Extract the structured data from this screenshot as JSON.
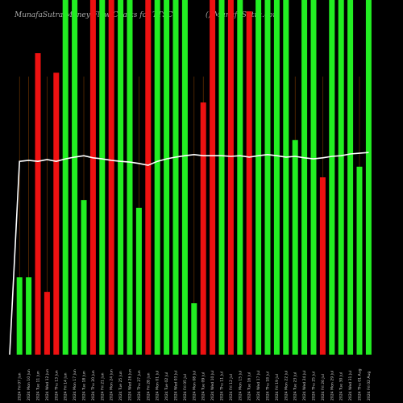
{
  "chart_data": {
    "type": "bar",
    "title": "MunafaSutra  Money Flow  Charts for TTSC",
    "subtitle": "() MunafaSutra.com",
    "categories": [
      "2024 Fri 07 Jun",
      "2024 Mon 10 Jun",
      "2024 Tue 11 Jun",
      "2024 Wed 12 Jun",
      "2024 Thu 13 Jun",
      "2024 Fri 14 Jun",
      "2024 Mon 17 Jun",
      "2024 Tue 18 Jun",
      "2024 Thu 20 Jun",
      "2024 Fri 21 Jun",
      "2024 Mon 24 Jun",
      "2024 Tue 25 Jun",
      "2024 Wed 26 Jun",
      "2024 Thu 27 Jun",
      "2024 Fri 28 Jun",
      "2024 Mon 01 Jul",
      "2024 Tue 02 Jul",
      "2024 Wed 03 Jul",
      "2024 Fri 05 Jul",
      "2024 Mon 08 Jul",
      "2024 Tue 09 Jul",
      "2024 Wed 10 Jul",
      "2024 Thu 11 Jul",
      "2024 Fri 12 Jul",
      "2024 Mon 15 Jul",
      "2024 Tue 16 Jul",
      "2024 Wed 17 Jul",
      "2024 Thu 18 Jul",
      "2024 Fri 19 Jul",
      "2024 Mon 22 Jul",
      "2024 Tue 23 Jul",
      "2024 Wed 24 Jul",
      "2024 Thu 25 Jul",
      "2024 Fri 26 Jul",
      "2024 Mon 29 Jul",
      "2024 Tue 30 Jul",
      "2024 Wed 31 Jul",
      "2024 Thu 01 Aug",
      "2024 Fri 02 Aug"
    ],
    "values": [
      21.8,
      21.8,
      85,
      17.7,
      79.5,
      100,
      100,
      43.6,
      100,
      100,
      100,
      100,
      100,
      41.4,
      100,
      100,
      100,
      100,
      100,
      14.5,
      71.1,
      100,
      100,
      100,
      100,
      96.8,
      100,
      100,
      100,
      100,
      60.5,
      100,
      100,
      50,
      100,
      100,
      100,
      53,
      100
    ],
    "colors": [
      "#22ee22",
      "#22ee22",
      "#ee1111",
      "#ee1111",
      "#ee1111",
      "#22ee22",
      "#22ee22",
      "#22ee22",
      "#ee1111",
      "#22ee22",
      "#ee1111",
      "#22ee22",
      "#22ee22",
      "#22ee22",
      "#ee1111",
      "#22ee22",
      "#22ee22",
      "#22ee22",
      "#22ee22",
      "#22ee22",
      "#ee1111",
      "#ee1111",
      "#22ee22",
      "#ee1111",
      "#22ee22",
      "#ee1111",
      "#22ee22",
      "#22ee22",
      "#22ee22",
      "#22ee22",
      "#22ee22",
      "#22ee22",
      "#22ee22",
      "#ee1111",
      "#22ee22",
      "#22ee22",
      "#22ee22",
      "#22ee22",
      "#22ee22"
    ],
    "line": {
      "color": "#ffffff",
      "values": [
        54.5,
        54.8,
        54.5,
        55,
        54.5,
        55.2,
        55.7,
        56.1,
        55.5,
        55.2,
        54.8,
        54.5,
        54.3,
        53.9,
        53.4,
        54.5,
        55.2,
        55.7,
        56.1,
        56.4,
        56.1,
        56.1,
        56.1,
        55.9,
        56.1,
        55.7,
        56.1,
        56.4,
        56.1,
        55.7,
        55.9,
        55.5,
        55.2,
        55.5,
        55.9,
        56.1,
        56.6,
        56.8,
        57
      ]
    },
    "ylim": [
      0,
      100
    ]
  }
}
